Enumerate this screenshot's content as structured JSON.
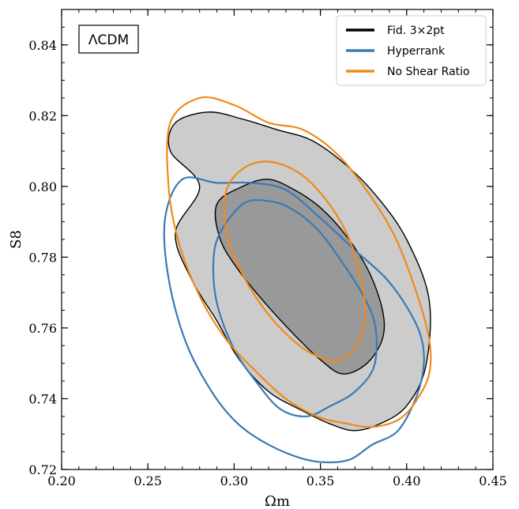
{
  "chart_data": {
    "type": "contour",
    "xlabel": "Ωm",
    "ylabel": "S8",
    "xlim": [
      0.2,
      0.45
    ],
    "ylim": [
      0.72,
      0.85
    ],
    "xticks": [
      "0.20",
      "0.25",
      "0.30",
      "0.35",
      "0.40",
      "0.45"
    ],
    "yticks": [
      "0.72",
      "0.74",
      "0.76",
      "0.78",
      "0.80",
      "0.82",
      "0.84"
    ],
    "model_label": "ΛCDM",
    "legend_position": "top-right",
    "series": [
      {
        "name": "Fid. 3×2pt",
        "color": "#000000",
        "filled": true,
        "contours": [
          {
            "level": "95%",
            "fill": "#cccccc",
            "points": [
              [
                0.28,
                0.8
              ],
              [
                0.263,
                0.81
              ],
              [
                0.266,
                0.818
              ],
              [
                0.285,
                0.821
              ],
              [
                0.305,
                0.819
              ],
              [
                0.325,
                0.816
              ],
              [
                0.345,
                0.813
              ],
              [
                0.365,
                0.806
              ],
              [
                0.383,
                0.797
              ],
              [
                0.4,
                0.785
              ],
              [
                0.413,
                0.768
              ],
              [
                0.411,
                0.749
              ],
              [
                0.4,
                0.738
              ],
              [
                0.385,
                0.733
              ],
              [
                0.37,
                0.731
              ],
              [
                0.355,
                0.733
              ],
              [
                0.338,
                0.737
              ],
              [
                0.32,
                0.742
              ],
              [
                0.303,
                0.751
              ],
              [
                0.29,
                0.762
              ],
              [
                0.275,
                0.774
              ],
              [
                0.266,
                0.787
              ]
            ]
          },
          {
            "level": "68%",
            "fill": "#999999",
            "points": [
              [
                0.29,
                0.795
              ],
              [
                0.305,
                0.8
              ],
              [
                0.32,
                0.802
              ],
              [
                0.335,
                0.799
              ],
              [
                0.35,
                0.794
              ],
              [
                0.365,
                0.786
              ],
              [
                0.378,
                0.776
              ],
              [
                0.386,
                0.765
              ],
              [
                0.386,
                0.757
              ],
              [
                0.377,
                0.75
              ],
              [
                0.363,
                0.747
              ],
              [
                0.35,
                0.751
              ],
              [
                0.335,
                0.758
              ],
              [
                0.318,
                0.767
              ],
              [
                0.303,
                0.776
              ],
              [
                0.292,
                0.785
              ]
            ]
          }
        ]
      },
      {
        "name": "Hyperrank",
        "color": "#3a7ab5",
        "filled": false,
        "contours": [
          {
            "level": "95%",
            "points": [
              [
                0.27,
                0.802
              ],
              [
                0.29,
                0.801
              ],
              [
                0.31,
                0.801
              ],
              [
                0.33,
                0.799
              ],
              [
                0.35,
                0.791
              ],
              [
                0.37,
                0.782
              ],
              [
                0.388,
                0.774
              ],
              [
                0.4,
                0.766
              ],
              [
                0.408,
                0.758
              ],
              [
                0.41,
                0.75
              ],
              [
                0.406,
                0.741
              ],
              [
                0.395,
                0.731
              ],
              [
                0.38,
                0.727
              ],
              [
                0.368,
                0.723
              ],
              [
                0.355,
                0.722
              ],
              [
                0.34,
                0.723
              ],
              [
                0.32,
                0.727
              ],
              [
                0.302,
                0.733
              ],
              [
                0.287,
                0.742
              ],
              [
                0.272,
                0.756
              ],
              [
                0.262,
                0.774
              ],
              [
                0.26,
                0.791
              ]
            ]
          },
          {
            "level": "68%",
            "points": [
              [
                0.292,
                0.787
              ],
              [
                0.305,
                0.795
              ],
              [
                0.318,
                0.796
              ],
              [
                0.332,
                0.794
              ],
              [
                0.348,
                0.788
              ],
              [
                0.362,
                0.779
              ],
              [
                0.375,
                0.769
              ],
              [
                0.382,
                0.76
              ],
              [
                0.381,
                0.749
              ],
              [
                0.37,
                0.742
              ],
              [
                0.356,
                0.738
              ],
              [
                0.342,
                0.735
              ],
              [
                0.327,
                0.737
              ],
              [
                0.314,
                0.744
              ],
              [
                0.3,
                0.754
              ],
              [
                0.29,
                0.767
              ],
              [
                0.288,
                0.779
              ]
            ]
          }
        ]
      },
      {
        "name": "No Shear Ratio",
        "color": "#f08a1a",
        "filled": false,
        "contours": [
          {
            "level": "95%",
            "points": [
              [
                0.28,
                0.825
              ],
              [
                0.3,
                0.823
              ],
              [
                0.32,
                0.818
              ],
              [
                0.34,
                0.816
              ],
              [
                0.36,
                0.809
              ],
              [
                0.378,
                0.798
              ],
              [
                0.393,
                0.786
              ],
              [
                0.405,
                0.771
              ],
              [
                0.413,
                0.757
              ],
              [
                0.413,
                0.747
              ],
              [
                0.405,
                0.739
              ],
              [
                0.395,
                0.734
              ],
              [
                0.38,
                0.732
              ],
              [
                0.365,
                0.733
              ],
              [
                0.348,
                0.735
              ],
              [
                0.33,
                0.74
              ],
              [
                0.312,
                0.748
              ],
              [
                0.295,
                0.757
              ],
              [
                0.28,
                0.769
              ],
              [
                0.268,
                0.784
              ],
              [
                0.262,
                0.8
              ],
              [
                0.263,
                0.818
              ]
            ]
          },
          {
            "level": "68%",
            "points": [
              [
                0.305,
                0.805
              ],
              [
                0.32,
                0.807
              ],
              [
                0.337,
                0.804
              ],
              [
                0.352,
                0.797
              ],
              [
                0.365,
                0.787
              ],
              [
                0.372,
                0.777
              ],
              [
                0.376,
                0.765
              ],
              [
                0.372,
                0.756
              ],
              [
                0.362,
                0.751
              ],
              [
                0.348,
                0.752
              ],
              [
                0.333,
                0.757
              ],
              [
                0.318,
                0.765
              ],
              [
                0.305,
                0.775
              ],
              [
                0.296,
                0.786
              ],
              [
                0.295,
                0.798
              ]
            ]
          }
        ]
      }
    ]
  }
}
